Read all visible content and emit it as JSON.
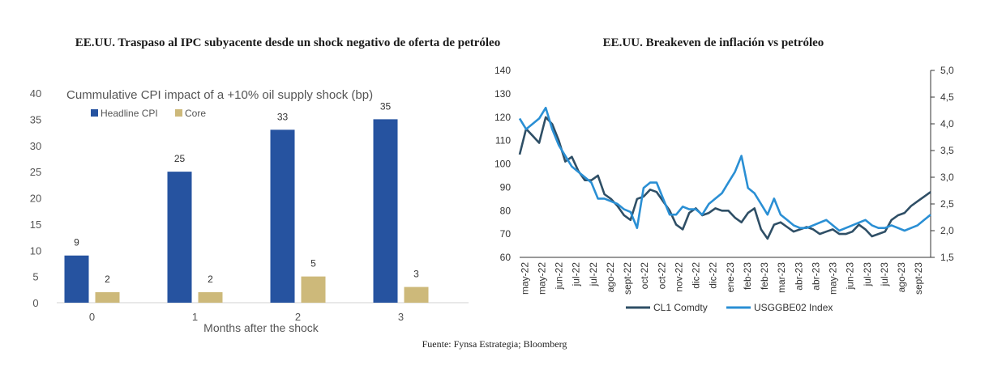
{
  "left_title": "EE.UU. Traspaso al IPC subyacente desde un shock negativo de oferta de petróleo",
  "right_title": "EE.UU. Breakeven de inflación vs petróleo",
  "source": "Fuente: Fynsa Estrategia; Bloomberg",
  "colors": {
    "headline": "#2653a0",
    "core": "#cdb97a",
    "cl1": "#2f4f66",
    "usggbe": "#2a8fd4"
  },
  "chart_data": [
    {
      "type": "bar",
      "title": "Cummulative CPI impact of a +10% oil supply shock (bp)",
      "xlabel": "Months after the shock",
      "ylabel": "",
      "ylim": [
        0,
        40
      ],
      "yticks": [
        "0",
        "5",
        "10",
        "15",
        "20",
        "25",
        "30",
        "35",
        "40"
      ],
      "categories": [
        "0",
        "1",
        "2",
        "3"
      ],
      "legend": "top-left",
      "series": [
        {
          "name": "Headline CPI",
          "values": [
            9,
            25,
            33,
            35
          ],
          "labels": [
            "9",
            "25",
            "33",
            "35"
          ]
        },
        {
          "name": "Core",
          "values": [
            2,
            2,
            5,
            3
          ],
          "labels": [
            "2",
            "2",
            "5",
            "3"
          ]
        }
      ]
    },
    {
      "type": "line",
      "title": "EE.UU. Breakeven de inflación vs petróleo",
      "xlabel": "",
      "ylabel": "",
      "ylim_left": [
        60,
        140
      ],
      "ylim_right": [
        1.5,
        5.0
      ],
      "yticks_left": [
        "60",
        "70",
        "80",
        "90",
        "100",
        "110",
        "120",
        "130",
        "140"
      ],
      "yticks_right": [
        "1,5",
        "2,0",
        "2,5",
        "3,0",
        "3,5",
        "4,0",
        "4,5",
        "5,0"
      ],
      "x_tick_labels": [
        "may-22",
        "may-22",
        "jun-22",
        "jul-22",
        "jul-22",
        "ago-22",
        "sept-22",
        "oct-22",
        "oct-22",
        "nov-22",
        "dic-22",
        "dic-22",
        "ene-23",
        "feb-23",
        "feb-23",
        "mar-23",
        "abr-23",
        "abr-23",
        "may-23",
        "jun-23",
        "jul-23",
        "jul-23",
        "ago-23",
        "sept-23"
      ],
      "legend": "bottom",
      "series": [
        {
          "name": "CL1 Comdty",
          "axis": "left",
          "values": [
            104,
            115,
            112,
            109,
            120,
            117,
            110,
            101,
            103,
            97,
            93,
            93,
            95,
            87,
            85,
            82,
            78,
            76,
            85,
            86,
            89,
            88,
            84,
            80,
            74,
            72,
            79,
            81,
            78,
            79,
            81,
            80,
            80,
            77,
            75,
            79,
            81,
            72,
            68,
            74,
            75,
            73,
            71,
            72,
            73,
            72,
            70,
            71,
            72,
            70,
            70,
            71,
            74,
            72,
            69,
            70,
            71,
            76,
            78,
            79,
            82,
            84,
            86,
            88
          ]
        },
        {
          "name": "USGGBE02 Index",
          "axis": "right",
          "values": [
            4.1,
            3.9,
            4.0,
            4.1,
            4.3,
            3.9,
            3.6,
            3.4,
            3.2,
            3.1,
            3.0,
            2.9,
            2.6,
            2.6,
            2.55,
            2.5,
            2.4,
            2.35,
            2.05,
            2.8,
            2.9,
            2.9,
            2.6,
            2.3,
            2.3,
            2.45,
            2.4,
            2.4,
            2.3,
            2.5,
            2.6,
            2.7,
            2.9,
            3.1,
            3.4,
            2.8,
            2.7,
            2.5,
            2.3,
            2.6,
            2.3,
            2.2,
            2.1,
            2.05,
            2.05,
            2.1,
            2.15,
            2.2,
            2.1,
            2.0,
            2.05,
            2.1,
            2.15,
            2.2,
            2.1,
            2.05,
            2.05,
            2.1,
            2.05,
            2.0,
            2.05,
            2.1,
            2.2,
            2.3
          ]
        }
      ]
    }
  ]
}
